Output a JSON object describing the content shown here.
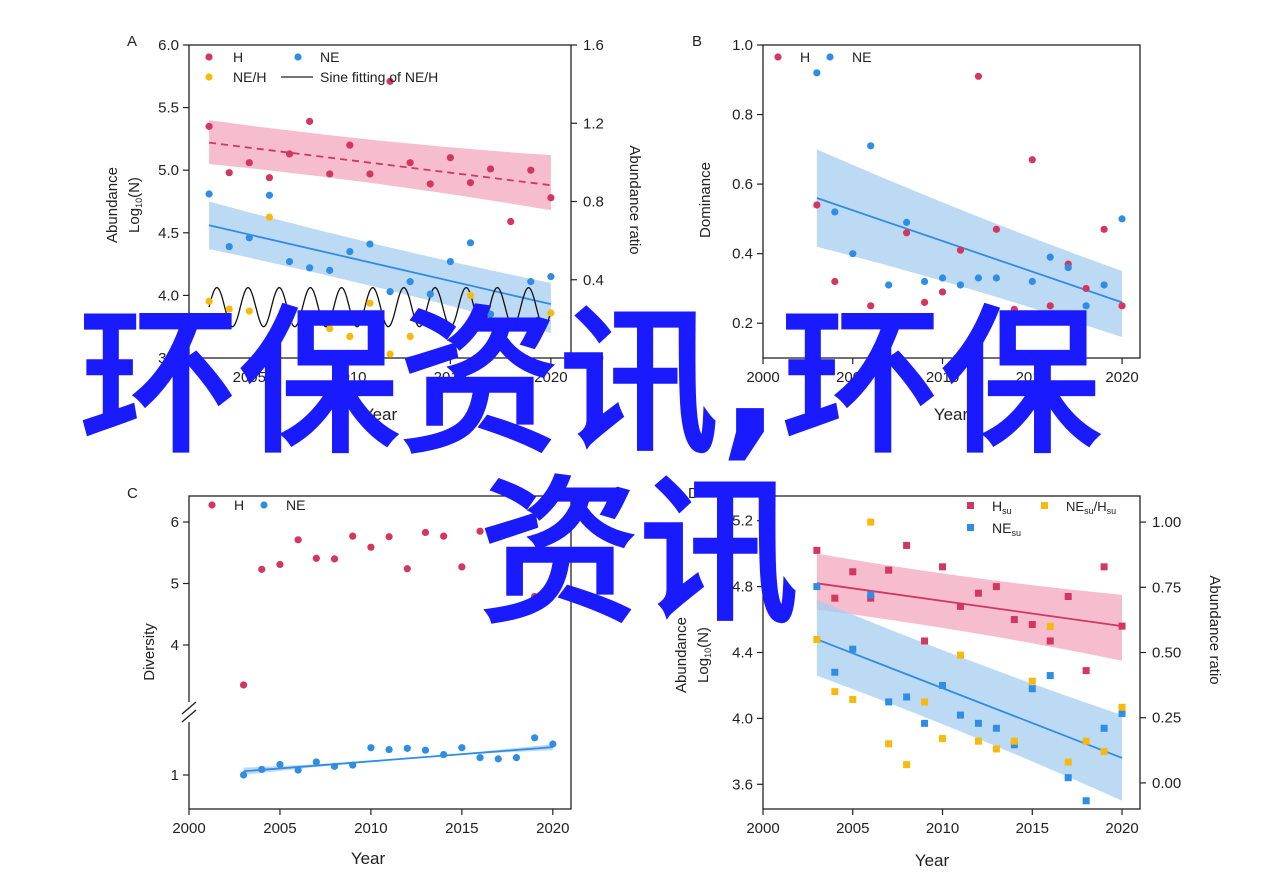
{
  "overlay": {
    "line1": "环保资讯,环保",
    "line2": "资讯"
  },
  "colors": {
    "H": "#d3365f",
    "NE": "#2f8de4",
    "ratio": "#f6b90c",
    "fitH": "#d3365f",
    "fitNE": "#2f8de4",
    "bandH": "#f2a7bd",
    "bandNE": "#a7cdf1",
    "axis": "#222222"
  },
  "chart_data": [
    {
      "panel": "A",
      "type": "scatter",
      "xlabel": "Year",
      "ylabel_line1": "Abundance",
      "ylabel_line2": "Log10(N)",
      "y2label": "Abundance ratio",
      "xlim": [
        2002,
        2021
      ],
      "ylim": [
        3.5,
        6.0
      ],
      "y2lim": [
        0,
        1.6
      ],
      "xticks": [
        "2005",
        "2010",
        "2015",
        "2020"
      ],
      "yticks": [
        "3.5",
        "4.0",
        "4.5",
        "5.0",
        "5.5",
        "6.0"
      ],
      "y2ticks": [
        "0.0",
        "0.4",
        "0.8",
        "1.2",
        "1.6"
      ],
      "legend": [
        "H",
        "NE",
        "NE/H",
        "Sine fitting of NE/H"
      ],
      "series": [
        {
          "name": "H",
          "x": [
            2003,
            2004,
            2005,
            2006,
            2007,
            2008,
            2009,
            2010,
            2011,
            2012,
            2013,
            2014,
            2015,
            2016,
            2017,
            2018,
            2019,
            2020
          ],
          "y": [
            5.35,
            4.98,
            5.06,
            4.94,
            5.13,
            5.39,
            4.97,
            5.2,
            4.97,
            5.71,
            5.06,
            4.89,
            5.1,
            4.9,
            5.01,
            4.59,
            5.0,
            4.78
          ]
        },
        {
          "name": "NE",
          "x": [
            2003,
            2004,
            2005,
            2006,
            2007,
            2008,
            2009,
            2010,
            2011,
            2012,
            2013,
            2014,
            2015,
            2016,
            2017,
            2018,
            2019,
            2020
          ],
          "y": [
            4.81,
            4.39,
            4.46,
            4.8,
            4.27,
            4.22,
            4.2,
            4.35,
            4.41,
            4.03,
            4.11,
            4.01,
            4.27,
            4.42,
            3.85,
            3.77,
            4.11,
            4.15
          ]
        },
        {
          "name": "NE/H",
          "x": [
            2003,
            2004,
            2005,
            2006,
            2007,
            2008,
            2009,
            2010,
            2011,
            2012,
            2013,
            2014,
            2015,
            2016,
            2017,
            2018,
            2019,
            2020
          ],
          "y": [
            0.29,
            0.25,
            0.24,
            0.72,
            0.19,
            0.06,
            0.15,
            0.11,
            0.28,
            0.02,
            0.11,
            0.17,
            0.15,
            0.32,
            0.0,
            0.03,
            0.13,
            0.23
          ]
        }
      ],
      "fits": [
        {
          "name": "H",
          "x": [
            2003,
            2020
          ],
          "y": [
            5.22,
            4.88
          ],
          "band_upper": [
            5.4,
            5.12
          ],
          "band_lower": [
            5.05,
            4.68
          ],
          "dashed": true
        },
        {
          "name": "NE",
          "x": [
            2003,
            2020
          ],
          "y": [
            4.56,
            3.93
          ],
          "band_upper": [
            4.75,
            4.1
          ],
          "band_lower": [
            4.37,
            3.7
          ],
          "dashed": false
        }
      ],
      "sine": {
        "center": 0.26,
        "amp": 0.1,
        "period": 1.55,
        "x_start": 2003,
        "x_end": 2020
      }
    },
    {
      "panel": "B",
      "type": "scatter",
      "xlabel": "Year",
      "ylabel": "Dominance",
      "xlim": [
        2000,
        2021
      ],
      "ylim": [
        0.1,
        1.0
      ],
      "xticks": [
        "2000",
        "2005",
        "2010",
        "2015",
        "2020"
      ],
      "yticks": [
        "0.2",
        "0.4",
        "0.6",
        "0.8",
        "1.0"
      ],
      "legend": [
        "H",
        "NE"
      ],
      "series": [
        {
          "name": "H",
          "x": [
            2003,
            2004,
            2006,
            2008,
            2009,
            2010,
            2011,
            2012,
            2013,
            2014,
            2015,
            2016,
            2017,
            2018,
            2019,
            2020
          ],
          "y": [
            0.54,
            0.32,
            0.25,
            0.46,
            0.26,
            0.29,
            0.41,
            0.91,
            0.47,
            0.24,
            0.67,
            0.25,
            0.37,
            0.3,
            0.47,
            0.25
          ]
        },
        {
          "name": "NE",
          "x": [
            2003,
            2004,
            2005,
            2006,
            2007,
            2008,
            2009,
            2010,
            2011,
            2012,
            2013,
            2014,
            2015,
            2016,
            2017,
            2018,
            2019,
            2020
          ],
          "y": [
            0.92,
            0.52,
            0.4,
            0.71,
            0.31,
            0.49,
            0.32,
            0.33,
            0.31,
            0.33,
            0.33,
            0.22,
            0.32,
            0.39,
            0.36,
            0.25,
            0.31,
            0.5
          ]
        }
      ],
      "fits": [
        {
          "name": "NE",
          "x": [
            2003,
            2020
          ],
          "y": [
            0.56,
            0.26
          ],
          "band_upper": [
            0.7,
            0.35
          ],
          "band_lower": [
            0.42,
            0.16
          ],
          "dashed": false
        }
      ]
    },
    {
      "panel": "C",
      "type": "scatter",
      "xlabel": "Year",
      "ylabel": "Diversity",
      "xlim": [
        2000,
        2021
      ],
      "xticks": [
        "2000",
        "2005",
        "2010",
        "2015",
        "2020"
      ],
      "yticks": [
        "1",
        "4",
        "5",
        "6"
      ],
      "axis_break": true,
      "legend": [
        "H",
        "NE"
      ],
      "series": [
        {
          "name": "H",
          "x": [
            2003,
            2004,
            2005,
            2006,
            2007,
            2008,
            2009,
            2010,
            2011,
            2012,
            2013,
            2014,
            2015,
            2016,
            2017,
            2018,
            2019,
            2020
          ],
          "y": [
            3.35,
            5.23,
            5.31,
            5.71,
            5.41,
            5.4,
            5.77,
            5.59,
            5.76,
            5.24,
            5.83,
            5.77,
            5.27,
            5.85,
            5.88,
            5.53,
            4.79,
            5.09
          ]
        },
        {
          "name": "NE",
          "x": [
            2003,
            2004,
            2005,
            2006,
            2007,
            2008,
            2009,
            2010,
            2011,
            2012,
            2013,
            2014,
            2015,
            2016,
            2017,
            2018,
            2019,
            2020
          ],
          "y": [
            1.0,
            1.09,
            1.17,
            1.08,
            1.21,
            1.14,
            1.16,
            1.44,
            1.41,
            1.43,
            1.4,
            1.33,
            1.44,
            1.28,
            1.26,
            1.28,
            1.6,
            1.5
          ]
        }
      ],
      "fits": [
        {
          "name": "NE",
          "x": [
            2003,
            2020
          ],
          "y": [
            1.06,
            1.45
          ],
          "band_upper": [
            1.12,
            1.5
          ],
          "band_lower": [
            1.0,
            1.4
          ],
          "dashed": false
        }
      ]
    },
    {
      "panel": "D",
      "type": "scatter",
      "xlabel": "Year",
      "ylabel_line1": "Abundance",
      "ylabel_line2": "Log10(N)",
      "y2label": "Abundance ratio",
      "xlim": [
        2000,
        2021
      ],
      "ylim": [
        3.45,
        5.35
      ],
      "y2lim": [
        -0.1,
        1.1
      ],
      "xticks": [
        "2000",
        "2005",
        "2010",
        "2015",
        "2020"
      ],
      "yticks": [
        "3.6",
        "4.0",
        "4.4",
        "4.8",
        "5.2"
      ],
      "y2ticks": [
        "0.00",
        "0.25",
        "0.50",
        "0.75",
        "1.00"
      ],
      "legend": [
        "Hsu",
        "NEsu/Hsu",
        "NEsu"
      ],
      "series": [
        {
          "name": "Hsu",
          "x": [
            2003,
            2004,
            2005,
            2006,
            2007,
            2008,
            2009,
            2010,
            2011,
            2012,
            2013,
            2014,
            2015,
            2016,
            2017,
            2018,
            2019,
            2020
          ],
          "y": [
            5.02,
            4.73,
            4.89,
            4.73,
            4.9,
            5.05,
            4.47,
            4.92,
            4.68,
            4.76,
            4.8,
            4.6,
            4.57,
            4.47,
            4.74,
            4.29,
            4.92,
            4.56
          ]
        },
        {
          "name": "NEsu",
          "x": [
            2003,
            2004,
            2005,
            2006,
            2007,
            2008,
            2009,
            2010,
            2011,
            2012,
            2013,
            2014,
            2015,
            2016,
            2017,
            2018,
            2019,
            2020
          ],
          "y": [
            4.8,
            4.28,
            4.42,
            4.75,
            4.1,
            4.13,
            3.97,
            4.2,
            4.02,
            3.97,
            3.94,
            3.84,
            4.18,
            4.26,
            3.64,
            3.5,
            3.94,
            4.03
          ]
        },
        {
          "name": "NEsu/Hsu",
          "x": [
            2003,
            2004,
            2005,
            2006,
            2007,
            2008,
            2009,
            2010,
            2011,
            2012,
            2013,
            2014,
            2015,
            2016,
            2017,
            2018,
            2019,
            2020
          ],
          "y": [
            0.55,
            0.35,
            0.32,
            1.0,
            0.15,
            0.07,
            0.31,
            0.17,
            0.49,
            0.16,
            0.13,
            0.16,
            0.39,
            0.6,
            0.08,
            0.16,
            0.12,
            0.29
          ]
        }
      ],
      "fits": [
        {
          "name": "Hsu",
          "x": [
            2003,
            2020
          ],
          "y": [
            4.82,
            4.56
          ],
          "band_upper": [
            5.0,
            4.75
          ],
          "band_lower": [
            4.66,
            4.35
          ],
          "dashed": false
        },
        {
          "name": "NEsu",
          "x": [
            2003,
            2020
          ],
          "y": [
            4.48,
            3.76
          ],
          "band_upper": [
            4.72,
            4.02
          ],
          "band_lower": [
            4.26,
            3.5
          ],
          "dashed": false
        }
      ]
    }
  ]
}
